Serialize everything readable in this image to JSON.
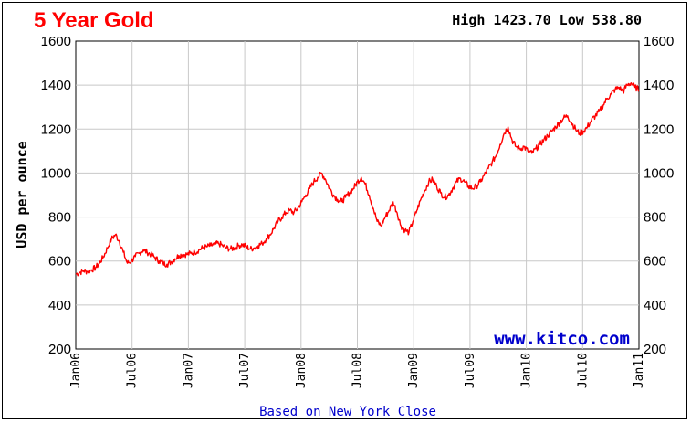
{
  "header": {
    "title": "5 Year Gold",
    "high_low": "High 1423.70 Low 538.80"
  },
  "watermark": "www.kitco.com",
  "footer": "Based on New York Close",
  "colors": {
    "series": "#ff0000",
    "title": "#ff0000",
    "watermark": "#0000cc",
    "grid": "#c8c8c8"
  },
  "chart_data": {
    "type": "line",
    "title": "5 Year Gold",
    "ylabel": "USD per ounce",
    "xlabel": "",
    "ylim": [
      200,
      1600
    ],
    "y_ticks": [
      200,
      400,
      600,
      800,
      1000,
      1200,
      1400,
      1600
    ],
    "x_ticks": [
      "Jan06",
      "Jul06",
      "Jan07",
      "Jul07",
      "Jan08",
      "Jul08",
      "Jan09",
      "Jul09",
      "Jan10",
      "Jul10",
      "Jan11"
    ],
    "grid": true,
    "series": [
      {
        "values_by_half_month": [
          540,
          548,
          556,
          552,
          560,
          570,
          590,
          620,
          660,
          700,
          720,
          690,
          640,
          590,
          600,
          620,
          635,
          650,
          640,
          630,
          615,
          600,
          590,
          585,
          595,
          610,
          625,
          630,
          630,
          635,
          640,
          650,
          660,
          665,
          670,
          675,
          680,
          670,
          660,
          655,
          660,
          670,
          675,
          665,
          655,
          660,
          670,
          680,
          700,
          720,
          750,
          780,
          800,
          820,
          830,
          820,
          840,
          870,
          900,
          930,
          960,
          980,
          1000,
          970,
          930,
          900,
          880,
          870,
          890,
          910,
          930,
          960,
          980,
          950,
          900,
          840,
          780,
          760,
          800,
          830,
          870,
          820,
          760,
          740,
          730,
          780,
          830,
          880,
          920,
          960,
          970,
          940,
          910,
          890,
          900,
          930,
          960,
          975,
          960,
          940,
          930,
          940,
          960,
          990,
          1020,
          1050,
          1080,
          1130,
          1180,
          1210,
          1150,
          1120,
          1110,
          1120,
          1100,
          1090,
          1110,
          1130,
          1150,
          1170,
          1190,
          1210,
          1230,
          1250,
          1260,
          1230,
          1200,
          1180,
          1190,
          1210,
          1240,
          1260,
          1280,
          1310,
          1340,
          1360,
          1380,
          1390,
          1370,
          1400,
          1410,
          1390,
          1380
        ]
      }
    ]
  }
}
